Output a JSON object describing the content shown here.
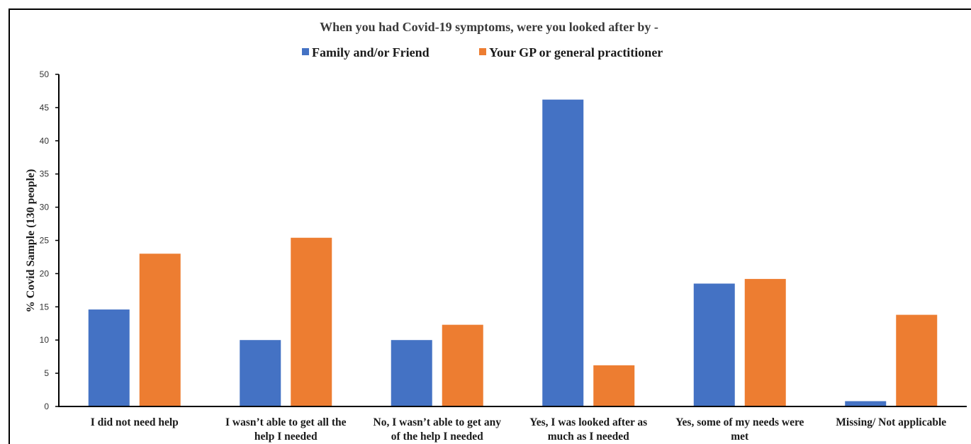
{
  "chart_data": {
    "type": "bar",
    "title": "When you had Covid-19 symptoms, were you looked after by -",
    "xlabel": "",
    "ylabel": "% Covid Sample (130 people)",
    "ylim": [
      0,
      50
    ],
    "yticks": [
      0,
      5,
      10,
      15,
      20,
      25,
      30,
      35,
      40,
      45,
      50
    ],
    "legend_position": "top-center",
    "grid": false,
    "categories": [
      [
        "I did not need help"
      ],
      [
        "I wasn’t able to get all the",
        "help I needed"
      ],
      [
        "No, I wasn’t able to get any",
        "of the help I needed"
      ],
      [
        "Yes, I was looked after as",
        "much as I needed"
      ],
      [
        "Yes, some of my needs were",
        "met"
      ],
      [
        "Missing/ Not applicable"
      ]
    ],
    "series": [
      {
        "name": "Family and/or Friend",
        "color": "#4472C4",
        "values": [
          14.6,
          10.0,
          10.0,
          46.2,
          18.5,
          0.8
        ]
      },
      {
        "name": "Your GP or general practitioner",
        "color": "#ED7D31",
        "values": [
          23.0,
          25.4,
          12.3,
          6.2,
          19.2,
          13.8
        ]
      }
    ]
  }
}
